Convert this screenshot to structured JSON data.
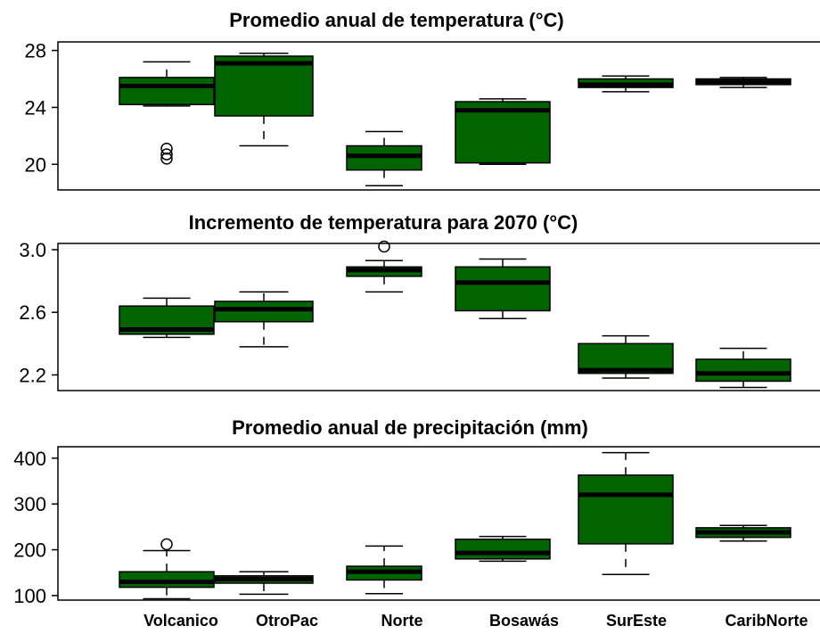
{
  "chart_data": [
    {
      "type": "boxplot",
      "title": "Promedio anual de temperatura (°C)",
      "categories": [
        "Volcanico",
        "OtroPac",
        "Norte",
        "Bosawás",
        "SurEste",
        "CaribNorte"
      ],
      "yticks": [
        "20",
        "24",
        "28"
      ],
      "ylim": [
        18.2,
        28.6
      ],
      "boxes": [
        {
          "min": 24.1,
          "q1": 24.2,
          "median": 25.5,
          "q3": 26.1,
          "max": 27.2,
          "outliers": [
            20.4,
            20.7,
            21.1
          ]
        },
        {
          "min": 21.3,
          "q1": 23.4,
          "median": 27.1,
          "q3": 27.6,
          "max": 27.8,
          "outliers": []
        },
        {
          "min": 18.5,
          "q1": 19.6,
          "median": 20.6,
          "q3": 21.3,
          "max": 22.3,
          "outliers": []
        },
        {
          "min": 20.0,
          "q1": 20.1,
          "median": 23.8,
          "q3": 24.4,
          "max": 24.6,
          "outliers": []
        },
        {
          "min": 25.1,
          "q1": 25.4,
          "median": 25.6,
          "q3": 26.0,
          "max": 26.2,
          "outliers": []
        },
        {
          "min": 25.4,
          "q1": 25.6,
          "median": 25.8,
          "q3": 26.0,
          "max": 26.1,
          "outliers": []
        }
      ]
    },
    {
      "type": "boxplot",
      "title": "Incremento  de temperatura para 2070 (°C)",
      "categories": [
        "Volcanico",
        "OtroPac",
        "Norte",
        "Bosawás",
        "SurEste",
        "CaribNorte"
      ],
      "yticks": [
        "2.2",
        "2.6",
        "3.0"
      ],
      "ylim": [
        2.1,
        3.04
      ],
      "boxes": [
        {
          "min": 2.44,
          "q1": 2.46,
          "median": 2.49,
          "q3": 2.64,
          "max": 2.69,
          "outliers": []
        },
        {
          "min": 2.38,
          "q1": 2.54,
          "median": 2.62,
          "q3": 2.67,
          "max": 2.73,
          "outliers": []
        },
        {
          "min": 2.73,
          "q1": 2.83,
          "median": 2.87,
          "q3": 2.89,
          "max": 2.93,
          "outliers": [
            3.02
          ]
        },
        {
          "min": 2.56,
          "q1": 2.61,
          "median": 2.79,
          "q3": 2.89,
          "max": 2.94,
          "outliers": []
        },
        {
          "min": 2.18,
          "q1": 2.21,
          "median": 2.23,
          "q3": 2.4,
          "max": 2.45,
          "outliers": []
        },
        {
          "min": 2.12,
          "q1": 2.16,
          "median": 2.21,
          "q3": 2.3,
          "max": 2.37,
          "outliers": []
        }
      ]
    },
    {
      "type": "boxplot",
      "title": "Promedio anual de precipitación (mm)",
      "categories": [
        "Volcanico",
        "OtroPac",
        "Norte",
        "Bosawás",
        "SurEste",
        "CaribNorte"
      ],
      "yticks": [
        "100",
        "200",
        "300",
        "400"
      ],
      "ylim": [
        90,
        425
      ],
      "boxes": [
        {
          "min": 93,
          "q1": 118,
          "median": 130,
          "q3": 152,
          "max": 198,
          "outliers": [
            212
          ]
        },
        {
          "min": 103,
          "q1": 127,
          "median": 136,
          "q3": 143,
          "max": 152,
          "outliers": []
        },
        {
          "min": 104,
          "q1": 134,
          "median": 152,
          "q3": 164,
          "max": 208,
          "outliers": []
        },
        {
          "min": 175,
          "q1": 180,
          "median": 193,
          "q3": 223,
          "max": 229,
          "outliers": []
        },
        {
          "min": 146,
          "q1": 213,
          "median": 320,
          "q3": 363,
          "max": 412,
          "outliers": []
        },
        {
          "min": 219,
          "q1": 227,
          "median": 238,
          "q3": 248,
          "max": 253,
          "outliers": []
        }
      ]
    }
  ],
  "colors": {
    "box_fill": "#006400",
    "stroke": "#000000",
    "background": "#ffffff"
  }
}
